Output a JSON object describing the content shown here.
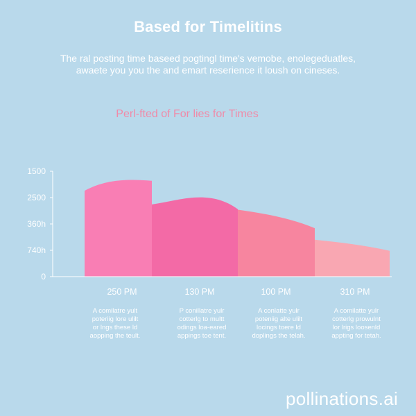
{
  "title": "Based for Timelitins",
  "subtitle_lines": [
    "The ral posting time baseed pogtingl time's vemobe, enolegeduatles,",
    "awaete you you the and emart reserience it loush on cineses."
  ],
  "chart_heading": "Perl-fted of  For lies for Times",
  "captions": [
    [
      "A comilatre yult",
      "poteriig lore ulilt",
      "or lngs these ld",
      "aopping the teult."
    ],
    [
      "P conillatre yulr",
      "cotterlg to multt",
      "odings loa-eared",
      "appings toe tent."
    ],
    [
      "A conlatte yulr",
      "poteniig alte ulilt",
      "locings toere ld",
      "doplings the telah."
    ],
    [
      "A comilatte yulr",
      "cotterlg prowulnt",
      "lor lrigs loosenld",
      "appting for tetah."
    ]
  ],
  "watermark": "pollinations.ai",
  "colors": {
    "background": "#b9d9eb",
    "text": "#ffffff",
    "heading": "#f08aa8",
    "series": [
      "#f97eb4",
      "#f36aa6",
      "#f7859f",
      "#f9a7b2"
    ]
  },
  "chart_data": {
    "type": "area",
    "categories": [
      "250 PM",
      "130 PM",
      "100 PM",
      "310 PM"
    ],
    "ytick_labels": [
      "0",
      "740h",
      "360h",
      "2500",
      "1500"
    ],
    "ylim": [
      0,
      2000
    ],
    "curves": [
      [
        1630,
        1860,
        1850,
        1820
      ],
      [
        1370,
        1450,
        1670,
        1280
      ],
      [
        1270,
        1200,
        1120,
        920
      ],
      [
        700,
        650,
        600,
        490
      ]
    ],
    "grid": false
  }
}
